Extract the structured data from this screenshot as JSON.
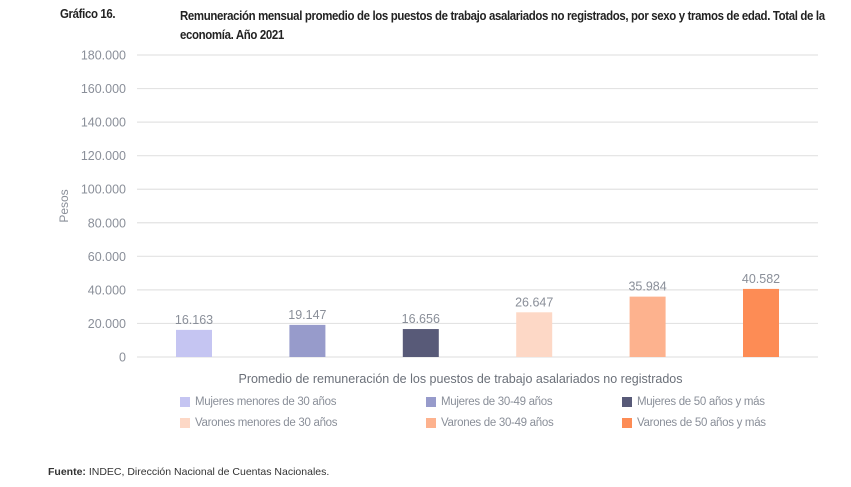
{
  "figure_label": "Gráfico 16.",
  "title": "Remuneración mensual promedio de los puestos de trabajo asalariados no registrados, por sexo y tramos de edad. Total de la economía. Año 2021",
  "source_label": "Fuente:",
  "source_text": "INDEC, Dirección Nacional de Cuentas Nacionales.",
  "chart_data": {
    "type": "bar",
    "title": "Remuneración mensual promedio de los puestos de trabajo asalariados no registrados, por sexo y tramos de edad. Total de la economía. Año 2021",
    "xlabel": "Promedio de remuneración de los puestos de trabajo asalariados no registrados",
    "ylabel": "Pesos",
    "ylim": [
      0,
      180000
    ],
    "yticks": [
      0,
      20000,
      40000,
      60000,
      80000,
      100000,
      120000,
      140000,
      160000,
      180000
    ],
    "ytick_labels": [
      "0",
      "20.000",
      "40.000",
      "60.000",
      "80.000",
      "100.000",
      "120.000",
      "140.000",
      "160.000",
      "180.000"
    ],
    "grid": true,
    "legend_position": "bottom",
    "series": [
      {
        "name": "Mujeres menores de 30 años",
        "value": 16163,
        "label": "16.163",
        "color": "#c5c5f2"
      },
      {
        "name": "Mujeres de 30-49 años",
        "value": 19147,
        "label": "19.147",
        "color": "#979bcb"
      },
      {
        "name": "Mujeres de 50 años y más",
        "value": 16656,
        "label": "16.656",
        "color": "#585a78"
      },
      {
        "name": "Varones menores de 30 años",
        "value": 26647,
        "label": "26.647",
        "color": "#fdd8c6"
      },
      {
        "name": "Varones de 30-49 años",
        "value": 35984,
        "label": "35.984",
        "color": "#fdb28e"
      },
      {
        "name": "Varones de 50 años y más",
        "value": 40582,
        "label": "40.582",
        "color": "#fd8c55"
      }
    ]
  }
}
